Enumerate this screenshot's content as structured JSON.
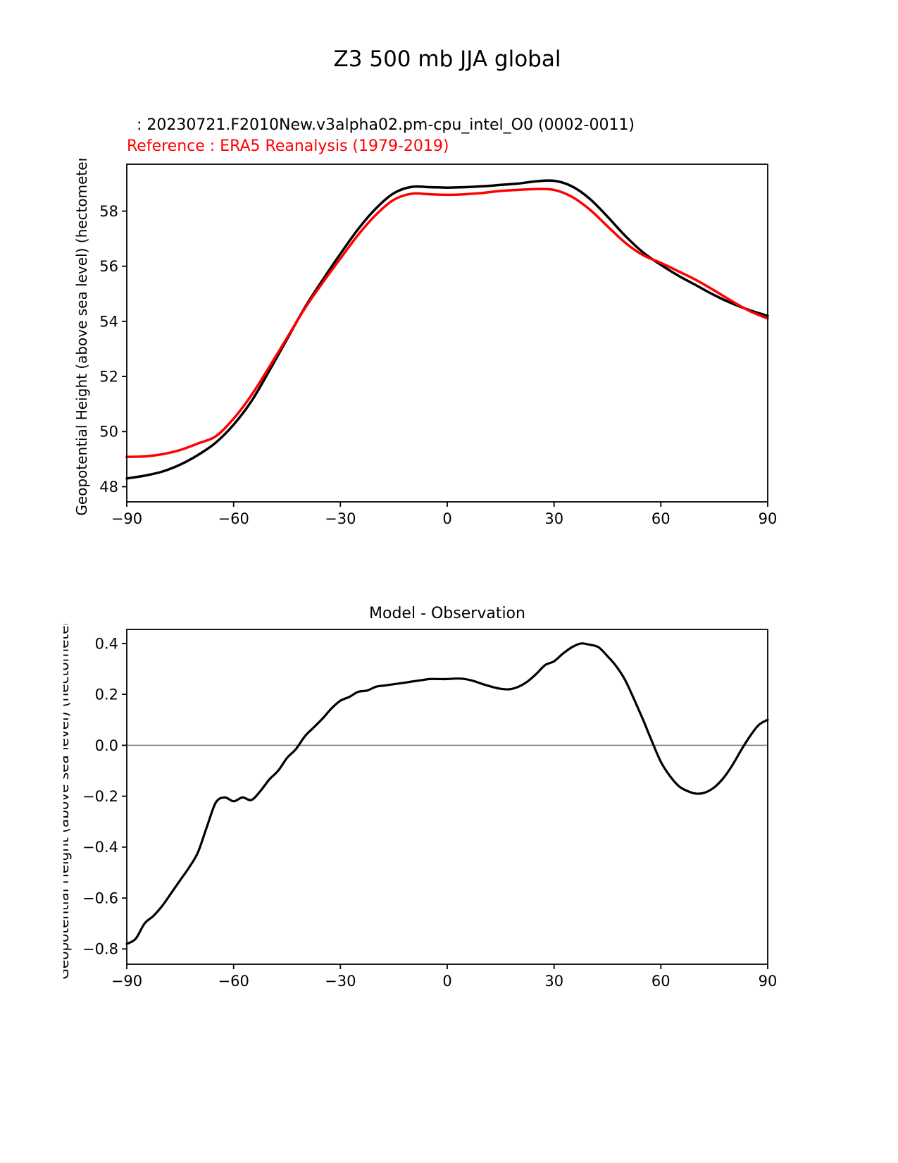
{
  "page_title": "Z3 500 mb JJA global",
  "chart_data": [
    {
      "type": "line",
      "id": "main-panel",
      "legend": [
        {
          "label": ": 20230721.F2010New.v3alpha02.pm-cpu_intel_O0 (0002-0011)",
          "color": "#000000"
        },
        {
          "label": "Reference : ERA5 Reanalysis (1979-2019)",
          "color": "#ff0000"
        }
      ],
      "xlabel": "",
      "ylabel": "Geopotential Height (above sea level) (hectometer)",
      "xlim": [
        -90,
        90
      ],
      "ylim": [
        47.45,
        59.7
      ],
      "xticks": [
        -90,
        -60,
        -30,
        0,
        30,
        60,
        90
      ],
      "xtick_labels": [
        "−90",
        "−60",
        "−30",
        "0",
        "30",
        "60",
        "90"
      ],
      "yticks": [
        48,
        50,
        52,
        54,
        56,
        58
      ],
      "ytick_labels": [
        "48",
        "50",
        "52",
        "54",
        "56",
        "58"
      ],
      "grid": false,
      "x": [
        -90,
        -85,
        -80,
        -75,
        -70,
        -65,
        -60,
        -55,
        -50,
        -45,
        -40,
        -35,
        -30,
        -25,
        -20,
        -15,
        -10,
        -5,
        0,
        5,
        10,
        15,
        20,
        25,
        30,
        35,
        40,
        45,
        50,
        55,
        60,
        65,
        70,
        75,
        80,
        85,
        90
      ],
      "series": [
        {
          "name": "model",
          "color": "#000000",
          "linewidth": 3.5,
          "y": [
            48.3,
            48.4,
            48.55,
            48.8,
            49.15,
            49.6,
            50.25,
            51.1,
            52.2,
            53.35,
            54.5,
            55.5,
            56.45,
            57.35,
            58.1,
            58.65,
            58.88,
            58.87,
            58.85,
            58.87,
            58.9,
            58.95,
            59.0,
            59.08,
            59.1,
            58.9,
            58.45,
            57.8,
            57.1,
            56.5,
            56.05,
            55.65,
            55.3,
            54.95,
            54.65,
            54.4,
            54.2
          ]
        },
        {
          "name": "reference",
          "color": "#ff0000",
          "linewidth": 3.5,
          "y": [
            49.08,
            49.1,
            49.18,
            49.33,
            49.57,
            49.83,
            50.47,
            51.32,
            52.34,
            53.4,
            54.47,
            55.4,
            56.28,
            57.14,
            57.87,
            58.41,
            58.63,
            58.61,
            58.59,
            58.61,
            58.66,
            58.73,
            58.77,
            58.8,
            58.77,
            58.52,
            58.06,
            57.45,
            56.85,
            56.4,
            56.12,
            55.81,
            55.49,
            55.12,
            54.73,
            54.37,
            54.1
          ]
        }
      ]
    },
    {
      "type": "line",
      "id": "difference-panel",
      "title": "Model - Observation",
      "xlabel": "",
      "ylabel": "Geopotential Height (above sea level) (hectometer)",
      "xlim": [
        -90,
        90
      ],
      "ylim": [
        -0.86,
        0.455
      ],
      "xticks": [
        -90,
        -60,
        -30,
        0,
        30,
        60,
        90
      ],
      "xtick_labels": [
        "−90",
        "−60",
        "−30",
        "0",
        "30",
        "60",
        "90"
      ],
      "yticks": [
        -0.8,
        -0.6,
        -0.4,
        -0.2,
        0.0,
        0.2,
        0.4
      ],
      "ytick_labels": [
        "−0.8",
        "−0.6",
        "−0.4",
        "−0.2",
        "0.0",
        "0.2",
        "0.4"
      ],
      "grid": false,
      "zero_line": {
        "value": 0,
        "color": "#808080"
      },
      "x": [
        -90,
        -87.5,
        -85,
        -82.5,
        -80,
        -77.5,
        -75,
        -72.5,
        -70,
        -67.5,
        -65,
        -62.5,
        -60,
        -57.5,
        -55,
        -52.5,
        -50,
        -47.5,
        -45,
        -42.5,
        -40,
        -37.5,
        -35,
        -32.5,
        -30,
        -27.5,
        -25,
        -22.5,
        -20,
        -17.5,
        -15,
        -12.5,
        -10,
        -7.5,
        -5,
        -2.5,
        0,
        2.5,
        5,
        7.5,
        10,
        12.5,
        15,
        17.5,
        20,
        22.5,
        25,
        27.5,
        30,
        32.5,
        35,
        37.5,
        40,
        42.5,
        45,
        47.5,
        50,
        52.5,
        55,
        57.5,
        60,
        62.5,
        65,
        67.5,
        70,
        72.5,
        75,
        77.5,
        80,
        82.5,
        85,
        87.5,
        90
      ],
      "series": [
        {
          "name": "model-minus-observation",
          "color": "#000000",
          "linewidth": 3.2,
          "y": [
            -0.78,
            -0.76,
            -0.7,
            -0.67,
            -0.63,
            -0.58,
            -0.53,
            -0.48,
            -0.42,
            -0.32,
            -0.225,
            -0.205,
            -0.22,
            -0.205,
            -0.215,
            -0.18,
            -0.135,
            -0.1,
            -0.05,
            -0.015,
            0.035,
            0.07,
            0.105,
            0.145,
            0.175,
            0.19,
            0.21,
            0.215,
            0.23,
            0.235,
            0.24,
            0.245,
            0.25,
            0.255,
            0.26,
            0.26,
            0.26,
            0.262,
            0.26,
            0.252,
            0.24,
            0.23,
            0.222,
            0.22,
            0.23,
            0.25,
            0.28,
            0.315,
            0.33,
            0.36,
            0.385,
            0.4,
            0.395,
            0.385,
            0.35,
            0.31,
            0.255,
            0.18,
            0.1,
            0.015,
            -0.065,
            -0.12,
            -0.16,
            -0.18,
            -0.19,
            -0.185,
            -0.165,
            -0.13,
            -0.08,
            -0.02,
            0.035,
            0.08,
            0.1
          ]
        }
      ]
    }
  ]
}
